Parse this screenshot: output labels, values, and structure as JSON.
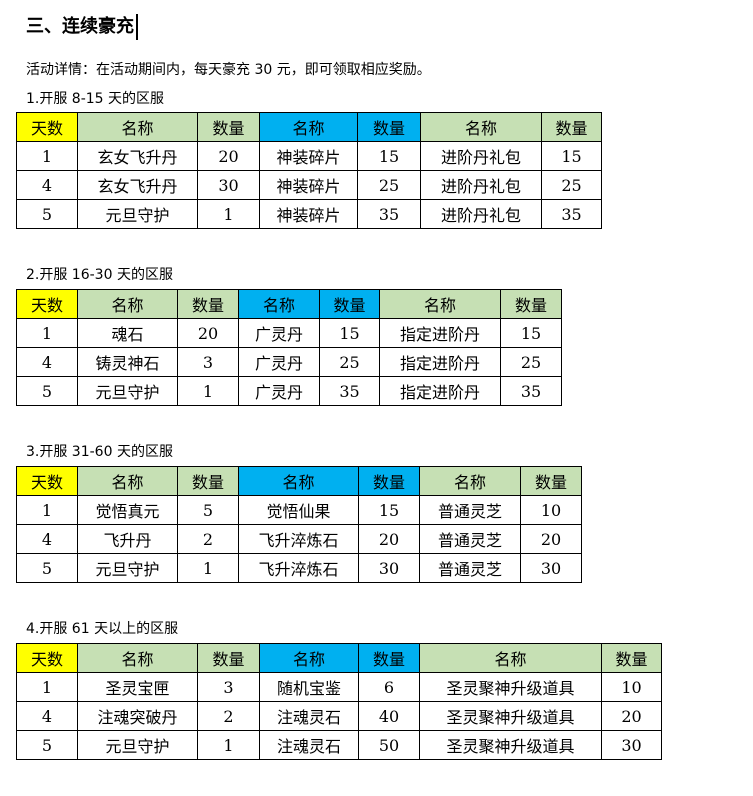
{
  "heading": "三、连续豪充",
  "details": "活动详情：在活动期间内，每天豪充 30 元，即可领取相应奖励。",
  "colors": {
    "day_header": "#ffff00",
    "green_header": "#c6e0b4",
    "blue_header": "#00b0f0"
  },
  "sections": [
    {
      "title": "1.开服 8-15 天的区服",
      "headers": [
        "天数",
        "名称",
        "数量",
        "名称",
        "数量",
        "名称",
        "数量"
      ],
      "rows": [
        [
          "1",
          "玄女飞升丹",
          "20",
          "神装碎片",
          "15",
          "进阶丹礼包",
          "15"
        ],
        [
          "4",
          "玄女飞升丹",
          "30",
          "神装碎片",
          "25",
          "进阶丹礼包",
          "25"
        ],
        [
          "5",
          "元旦守护",
          "1",
          "神装碎片",
          "35",
          "进阶丹礼包",
          "35"
        ]
      ]
    },
    {
      "title": "2.开服 16-30 天的区服",
      "headers": [
        "天数",
        "名称",
        "数量",
        "名称",
        "数量",
        "名称",
        "数量"
      ],
      "rows": [
        [
          "1",
          "魂石",
          "20",
          "广灵丹",
          "15",
          "指定进阶丹",
          "15"
        ],
        [
          "4",
          "铸灵神石",
          "3",
          "广灵丹",
          "25",
          "指定进阶丹",
          "25"
        ],
        [
          "5",
          "元旦守护",
          "1",
          "广灵丹",
          "35",
          "指定进阶丹",
          "35"
        ]
      ]
    },
    {
      "title": "3.开服 31-60 天的区服",
      "headers": [
        "天数",
        "名称",
        "数量",
        "名称",
        "数量",
        "名称",
        "数量"
      ],
      "rows": [
        [
          "1",
          "觉悟真元",
          "5",
          "觉悟仙果",
          "15",
          "普通灵芝",
          "10"
        ],
        [
          "4",
          "飞升丹",
          "2",
          "飞升淬炼石",
          "20",
          "普通灵芝",
          "20"
        ],
        [
          "5",
          "元旦守护",
          "1",
          "飞升淬炼石",
          "30",
          "普通灵芝",
          "30"
        ]
      ]
    },
    {
      "title": "4.开服 61 天以上的区服",
      "headers": [
        "天数",
        "名称",
        "数量",
        "名称",
        "数量",
        "名称",
        "数量"
      ],
      "rows": [
        [
          "1",
          "圣灵宝匣",
          "3",
          "随机宝鉴",
          "6",
          "圣灵聚神升级道具",
          "10"
        ],
        [
          "4",
          "注魂突破丹",
          "2",
          "注魂灵石",
          "40",
          "圣灵聚神升级道具",
          "20"
        ],
        [
          "5",
          "元旦守护",
          "1",
          "注魂灵石",
          "50",
          "圣灵聚神升级道具",
          "30"
        ]
      ]
    }
  ]
}
